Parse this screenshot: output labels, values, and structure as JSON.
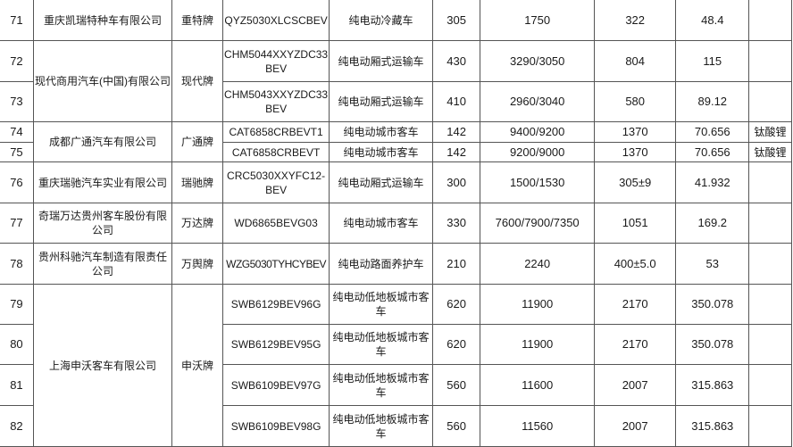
{
  "table": {
    "rows": [
      {
        "no": "71",
        "company": "重庆凯瑞特种车有限公司",
        "brand": "重特牌",
        "model": "QYZ5030XLCSCBEV",
        "type": "纯电动冷藏车",
        "range": "305",
        "mass": "1750",
        "capacity": "322",
        "energy": "48.4",
        "battery": ""
      },
      {
        "no": "72",
        "company": "现代商用汽车(中国)有限公司",
        "brand": "现代牌",
        "model": "CHM5044XXYZDC33BEV",
        "type": "纯电动厢式运输车",
        "range": "430",
        "mass": "3290/3050",
        "capacity": "804",
        "energy": "115",
        "battery": ""
      },
      {
        "no": "73",
        "model": "CHM5043XXYZDC33BEV",
        "type": "纯电动厢式运输车",
        "range": "410",
        "mass": "2960/3040",
        "capacity": "580",
        "energy": "89.12",
        "battery": ""
      },
      {
        "no": "74",
        "company": "成都广通汽车有限公司",
        "brand": "广通牌",
        "model": "CAT6858CRBEVT1",
        "type": "纯电动城市客车",
        "range": "142",
        "mass": "9400/9200",
        "capacity": "1370",
        "energy": "70.656",
        "battery": "钛酸锂"
      },
      {
        "no": "75",
        "model": "CAT6858CRBEVT",
        "type": "纯电动城市客车",
        "range": "142",
        "mass": "9200/9000",
        "capacity": "1370",
        "energy": "70.656",
        "battery": "钛酸锂"
      },
      {
        "no": "76",
        "company": "重庆瑞驰汽车实业有限公司",
        "brand": "瑞驰牌",
        "model": "CRC5030XXYFC12-BEV",
        "type": "纯电动厢式运输车",
        "range": "300",
        "mass": "1500/1530",
        "capacity": "305±9",
        "energy": "41.932",
        "battery": ""
      },
      {
        "no": "77",
        "company": "奇瑞万达贵州客车股份有限公司",
        "brand": "万达牌",
        "model": "WD6865BEVG03",
        "type": "纯电动城市客车",
        "range": "330",
        "mass": "7600/7900/7350",
        "capacity": "1051",
        "energy": "169.2",
        "battery": ""
      },
      {
        "no": "78",
        "company": "贵州科驰汽车制造有限责任公司",
        "brand": "万舆牌",
        "model": "WZG5030TYHCYBEV",
        "type": "纯电动路面养护车",
        "range": "210",
        "mass": "2240",
        "capacity": "400±5.0",
        "energy": "53",
        "battery": ""
      },
      {
        "no": "79",
        "company": "上海申沃客车有限公司",
        "brand": "申沃牌",
        "model": "SWB6129BEV96G",
        "type": "纯电动低地板城市客车",
        "range": "620",
        "mass": "11900",
        "capacity": "2170",
        "energy": "350.078",
        "battery": ""
      },
      {
        "no": "80",
        "model": "SWB6129BEV95G",
        "type": "纯电动低地板城市客车",
        "range": "620",
        "mass": "11900",
        "capacity": "2170",
        "energy": "350.078",
        "battery": ""
      },
      {
        "no": "81",
        "model": "SWB6109BEV97G",
        "type": "纯电动低地板城市客车",
        "range": "560",
        "mass": "11600",
        "capacity": "2007",
        "energy": "315.863",
        "battery": ""
      },
      {
        "no": "82",
        "model": "SWB6109BEV98G",
        "type": "纯电动低地板城市客车",
        "range": "560",
        "mass": "11560",
        "capacity": "2007",
        "energy": "315.863",
        "battery": ""
      }
    ]
  }
}
